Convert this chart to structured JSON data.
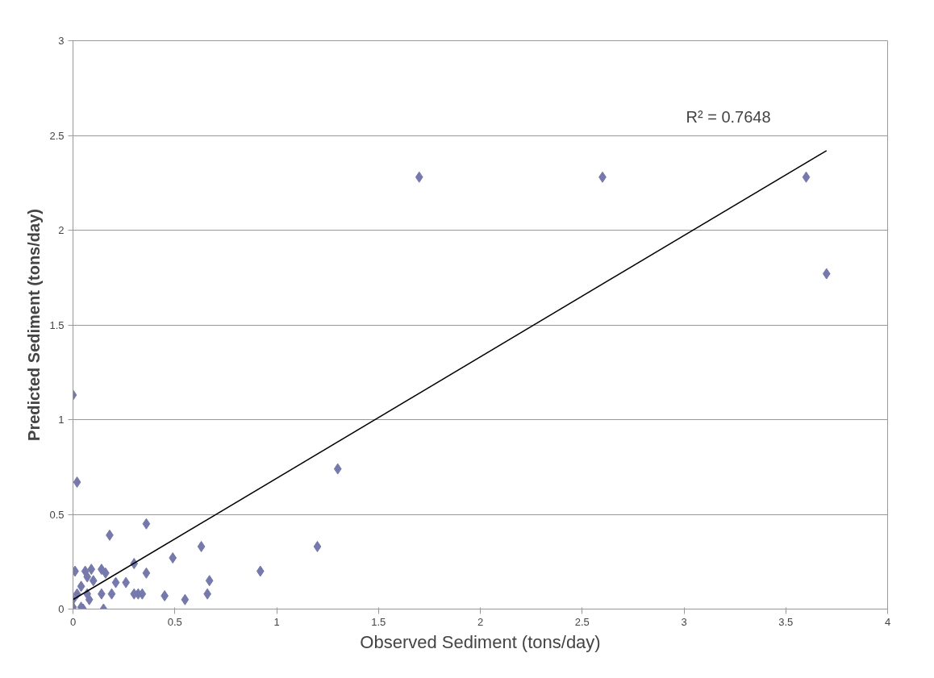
{
  "chart_data": {
    "type": "scatter",
    "xlabel": "Observed Sediment (tons/day)",
    "ylabel": "Predicted Sediment (tons/day)",
    "xlim": [
      0,
      4
    ],
    "ylim": [
      0,
      3
    ],
    "xticks": [
      0,
      0.5,
      1,
      1.5,
      2,
      2.5,
      3,
      3.5,
      4
    ],
    "yticks": [
      0,
      0.5,
      1,
      1.5,
      2,
      2.5,
      3
    ],
    "grid": "y",
    "series": [
      {
        "marker": "diamond",
        "color": "#7679ab",
        "x": [
          0.01,
          0.06,
          0.09,
          0.14,
          0.16,
          0.21,
          0.26,
          0.3,
          0.36,
          0.07,
          0.04,
          0.1,
          0.02,
          0.07,
          0.14,
          0.19,
          0.3,
          0.32,
          0.34,
          0.45,
          0.55,
          0.66,
          0.67,
          0.92,
          0.0,
          0.04,
          0.15,
          0.0,
          0.08,
          0.05,
          0.02,
          0.0,
          0.18,
          0.36,
          0.63,
          0.49,
          1.2,
          1.3,
          1.7,
          2.6,
          3.6,
          3.7
        ],
        "values": [
          0.2,
          0.2,
          0.21,
          0.21,
          0.19,
          0.14,
          0.14,
          0.24,
          0.19,
          0.17,
          0.12,
          0.15,
          0.08,
          0.08,
          0.08,
          0.08,
          0.08,
          0.08,
          0.08,
          0.07,
          0.05,
          0.08,
          0.15,
          0.2,
          0.01,
          0.01,
          0.0,
          0.05,
          0.05,
          0.0,
          0.67,
          1.13,
          0.39,
          0.45,
          0.33,
          0.27,
          0.33,
          0.74,
          2.28,
          2.28,
          2.28,
          1.77
        ]
      },
      {
        "type": "line",
        "color": "#000000",
        "x": [
          0.0,
          3.7
        ],
        "values": [
          0.05,
          2.42
        ],
        "line_style": "solid"
      }
    ],
    "annotations": [
      "R² = 0.7648"
    ]
  }
}
